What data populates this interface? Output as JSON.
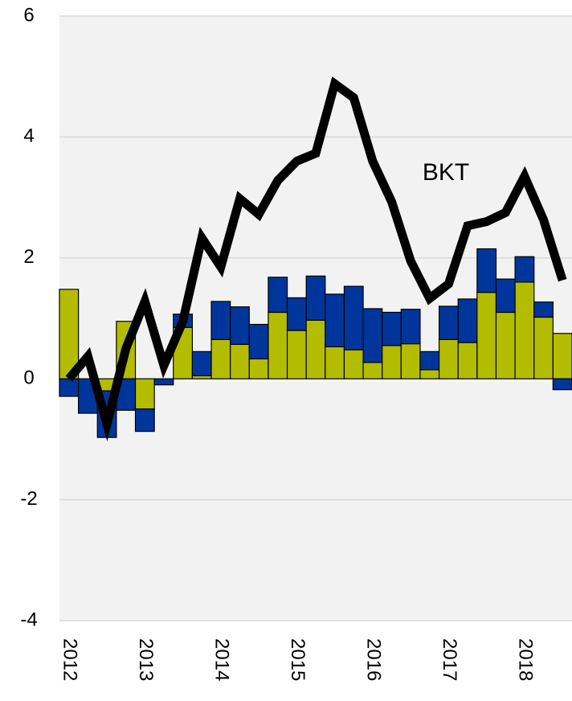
{
  "chart_data": {
    "type": "bar",
    "categories": [
      "2012",
      null,
      null,
      null,
      "2013",
      null,
      null,
      null,
      "2014",
      null,
      null,
      null,
      "2015",
      null,
      null,
      null,
      "2016",
      null,
      null,
      null,
      "2017",
      null,
      null,
      null,
      "2018",
      null,
      null
    ],
    "series": [
      {
        "color": "#b4bc00",
        "values": [
          1.48,
          0,
          -0.2,
          0.95,
          -0.5,
          0,
          0.85,
          0.05,
          0.65,
          0.57,
          0.33,
          1.1,
          0.8,
          0.97,
          0.53,
          0.48,
          0.27,
          0.55,
          0.58,
          0.15,
          0.65,
          0.6,
          1.43,
          1.1,
          1.6,
          1.02,
          0.75
        ]
      },
      {
        "color": "#00369c",
        "values": [
          -0.29,
          -0.57,
          -0.77,
          -0.52,
          -0.37,
          -0.1,
          0.22,
          0.4,
          0.63,
          0.62,
          0.57,
          0.58,
          0.54,
          0.73,
          0.87,
          1.05,
          0.89,
          0.55,
          0.57,
          0.3,
          0.55,
          0.72,
          0.72,
          0.55,
          0.42,
          0.25,
          -0.18
        ]
      },
      {
        "name": "BKT",
        "type": "line",
        "color": "#000000",
        "values": [
          0,
          0.37,
          -0.75,
          0.5,
          1.28,
          0.22,
          0.95,
          2.33,
          1.85,
          2.98,
          2.72,
          3.28,
          3.6,
          3.73,
          4.88,
          4.65,
          3.6,
          2.93,
          1.95,
          1.33,
          1.57,
          2.53,
          2.6,
          2.75,
          3.35,
          2.63,
          1.63
        ]
      }
    ],
    "stacked": true,
    "ylim": [
      -4,
      6
    ],
    "yticks": [
      -4,
      -2,
      0,
      2,
      4,
      6
    ],
    "grid": true
  }
}
